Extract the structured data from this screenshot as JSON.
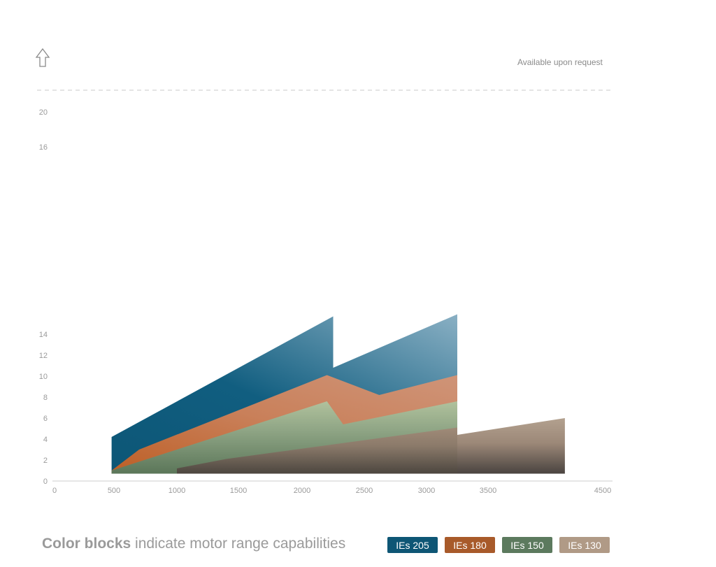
{
  "note": "Available upon request",
  "legend": {
    "bold": "Color blocks",
    "text": " indicate motor range capabilities",
    "items": [
      {
        "label": "IEs 205",
        "color": "#0e5675"
      },
      {
        "label": "IEs 180",
        "color": "#a85a2a"
      },
      {
        "label": "IEs 150",
        "color": "#5c7a5e"
      },
      {
        "label": "IEs 130",
        "color": "#b09a86"
      }
    ]
  },
  "chart_data": {
    "type": "area",
    "x_ticks": [
      0,
      500,
      1000,
      1500,
      2000,
      2500,
      3000,
      3500,
      4500
    ],
    "y_ticks": [
      0,
      2,
      4,
      6,
      8,
      10,
      12,
      14,
      16,
      20
    ],
    "grid": false,
    "series": [
      {
        "name": "IEs 205",
        "color": "#0e5675",
        "points": [
          [
            480,
            4.2
          ],
          [
            2250,
            15.7
          ],
          [
            2250,
            10.8
          ],
          [
            3250,
            15.9
          ],
          [
            3250,
            0.7
          ],
          [
            480,
            0.7
          ]
        ]
      },
      {
        "name": "IEs 180",
        "color": "#c06a38",
        "points": [
          [
            480,
            1.0
          ],
          [
            700,
            3.0
          ],
          [
            2200,
            10.1
          ],
          [
            2620,
            8.2
          ],
          [
            3250,
            10.1
          ],
          [
            3250,
            0.7
          ],
          [
            480,
            0.7
          ]
        ]
      },
      {
        "name": "IEs 150",
        "color": "#5c7a5e",
        "points": [
          [
            480,
            1.0
          ],
          [
            2200,
            7.6
          ],
          [
            2330,
            5.4
          ],
          [
            3250,
            7.6
          ],
          [
            3250,
            0.7
          ],
          [
            480,
            0.7
          ]
        ]
      },
      {
        "name": "IEs 130",
        "color": "#8e7b6b",
        "points": [
          [
            1000,
            1.2
          ],
          [
            1400,
            2.1
          ],
          [
            3250,
            5.1
          ],
          [
            3250,
            0.7
          ],
          [
            1000,
            0.7
          ]
        ]
      },
      {
        "name": "IEs 130",
        "color": "#b09a86",
        "points": [
          [
            3250,
            4.4
          ],
          [
            4170,
            6.0
          ],
          [
            4170,
            0.7
          ],
          [
            3250,
            0.7
          ]
        ]
      }
    ]
  }
}
